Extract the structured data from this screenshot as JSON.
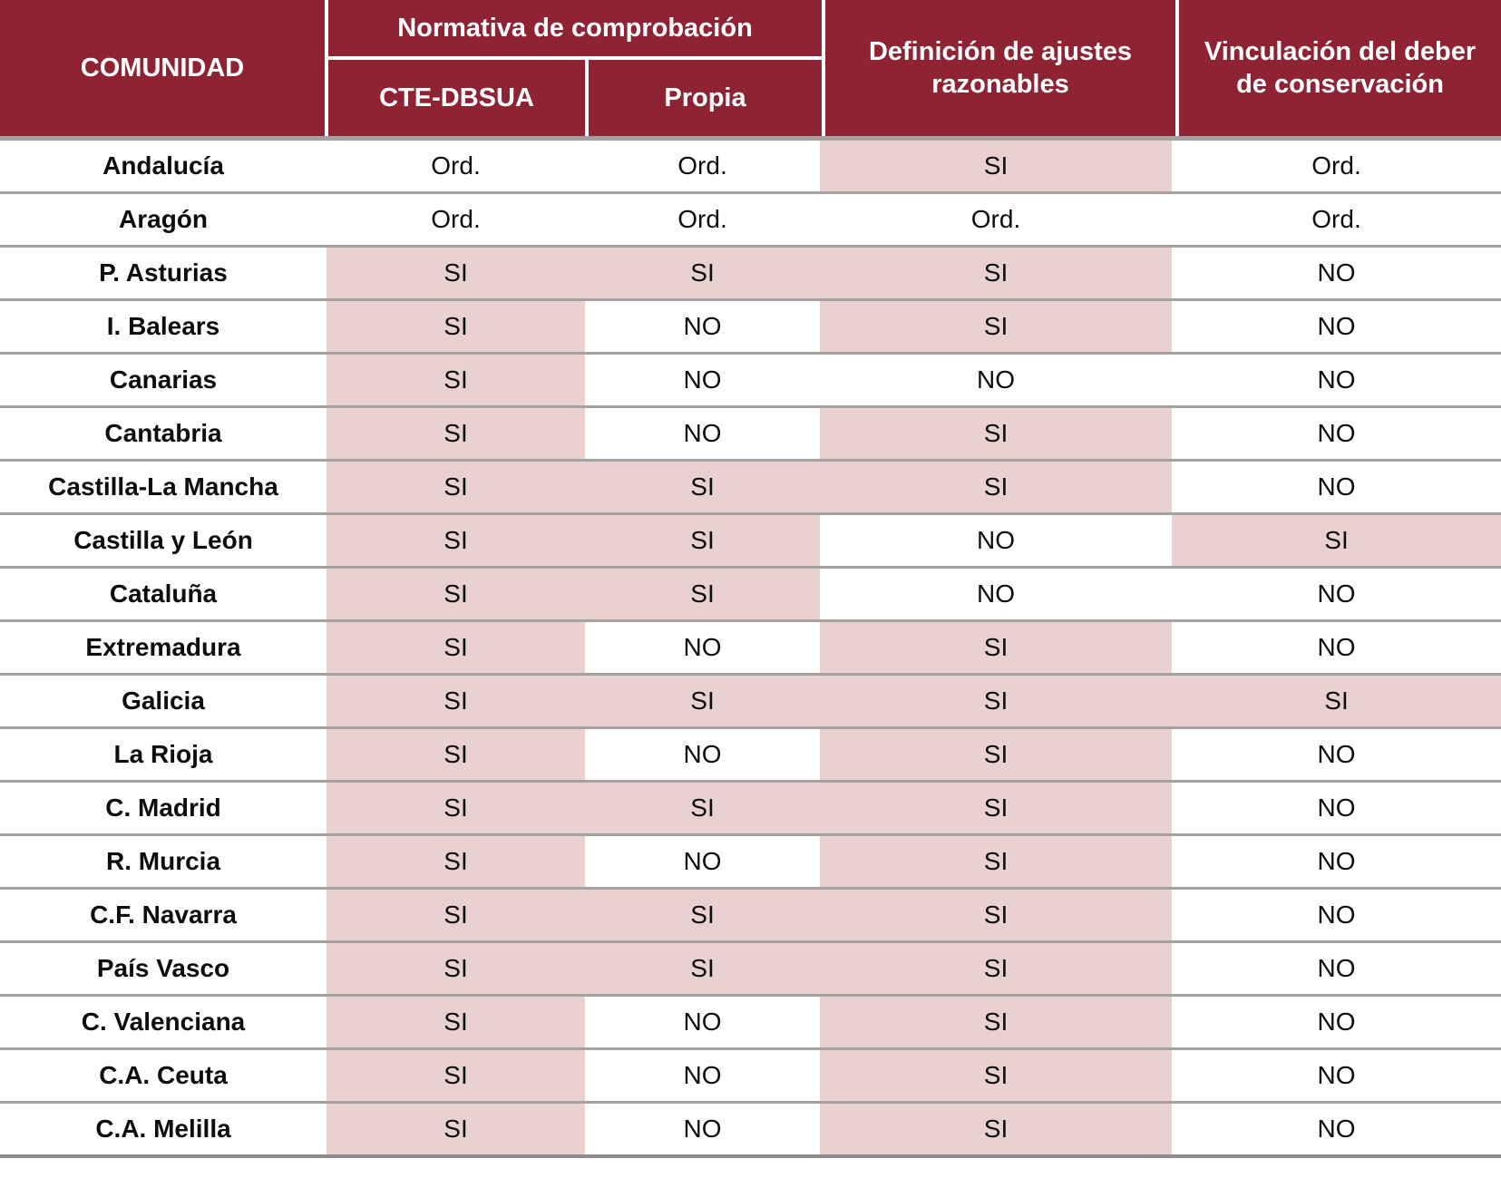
{
  "table": {
    "header": {
      "comunidad": "COMUNIDAD",
      "normativa_group": "Normativa de comprobación",
      "cte": "CTE-DBSUA",
      "propia": "Propia",
      "definicion": "Definición de ajustes razonables",
      "vinculacion": "Vinculación del deber de conservación"
    },
    "rows": [
      {
        "name": "Andalucía",
        "cells": [
          {
            "v": "Ord.",
            "hl": false
          },
          {
            "v": "Ord.",
            "hl": false
          },
          {
            "v": "SI",
            "hl": true
          },
          {
            "v": "Ord.",
            "hl": false
          }
        ]
      },
      {
        "name": "Aragón",
        "cells": [
          {
            "v": "Ord.",
            "hl": false
          },
          {
            "v": "Ord.",
            "hl": false
          },
          {
            "v": "Ord.",
            "hl": false
          },
          {
            "v": "Ord.",
            "hl": false
          }
        ]
      },
      {
        "name": "P. Asturias",
        "cells": [
          {
            "v": "SI",
            "hl": true
          },
          {
            "v": "SI",
            "hl": true
          },
          {
            "v": "SI",
            "hl": true
          },
          {
            "v": "NO",
            "hl": false
          }
        ]
      },
      {
        "name": "I. Balears",
        "cells": [
          {
            "v": "SI",
            "hl": true
          },
          {
            "v": "NO",
            "hl": false
          },
          {
            "v": "SI",
            "hl": true
          },
          {
            "v": "NO",
            "hl": false
          }
        ]
      },
      {
        "name": "Canarias",
        "cells": [
          {
            "v": "SI",
            "hl": true
          },
          {
            "v": "NO",
            "hl": false
          },
          {
            "v": "NO",
            "hl": false
          },
          {
            "v": "NO",
            "hl": false
          }
        ]
      },
      {
        "name": "Cantabria",
        "cells": [
          {
            "v": "SI",
            "hl": true
          },
          {
            "v": "NO",
            "hl": false
          },
          {
            "v": "SI",
            "hl": true
          },
          {
            "v": "NO",
            "hl": false
          }
        ]
      },
      {
        "name": "Castilla-La Mancha",
        "cells": [
          {
            "v": "SI",
            "hl": true
          },
          {
            "v": "SI",
            "hl": true
          },
          {
            "v": "SI",
            "hl": true
          },
          {
            "v": "NO",
            "hl": false
          }
        ]
      },
      {
        "name": "Castilla y León",
        "cells": [
          {
            "v": "SI",
            "hl": true
          },
          {
            "v": "SI",
            "hl": true
          },
          {
            "v": "NO",
            "hl": false
          },
          {
            "v": "SI",
            "hl": true
          }
        ]
      },
      {
        "name": "Cataluña",
        "cells": [
          {
            "v": "SI",
            "hl": true
          },
          {
            "v": "SI",
            "hl": true
          },
          {
            "v": "NO",
            "hl": false
          },
          {
            "v": "NO",
            "hl": false
          }
        ]
      },
      {
        "name": "Extremadura",
        "cells": [
          {
            "v": "SI",
            "hl": true
          },
          {
            "v": "NO",
            "hl": false
          },
          {
            "v": "SI",
            "hl": true
          },
          {
            "v": "NO",
            "hl": false
          }
        ]
      },
      {
        "name": "Galicia",
        "cells": [
          {
            "v": "SI",
            "hl": true
          },
          {
            "v": "SI",
            "hl": true
          },
          {
            "v": "SI",
            "hl": true
          },
          {
            "v": "SI",
            "hl": true
          }
        ]
      },
      {
        "name": "La Rioja",
        "cells": [
          {
            "v": "SI",
            "hl": true
          },
          {
            "v": "NO",
            "hl": false
          },
          {
            "v": "SI",
            "hl": true
          },
          {
            "v": "NO",
            "hl": false
          }
        ]
      },
      {
        "name": "C. Madrid",
        "cells": [
          {
            "v": "SI",
            "hl": true
          },
          {
            "v": "SI",
            "hl": true
          },
          {
            "v": "SI",
            "hl": true
          },
          {
            "v": "NO",
            "hl": false
          }
        ]
      },
      {
        "name": "R. Murcia",
        "cells": [
          {
            "v": "SI",
            "hl": true
          },
          {
            "v": "NO",
            "hl": false
          },
          {
            "v": "SI",
            "hl": true
          },
          {
            "v": "NO",
            "hl": false
          }
        ]
      },
      {
        "name": "C.F. Navarra",
        "cells": [
          {
            "v": "SI",
            "hl": true
          },
          {
            "v": "SI",
            "hl": true
          },
          {
            "v": "SI",
            "hl": true
          },
          {
            "v": "NO",
            "hl": false
          }
        ]
      },
      {
        "name": "País Vasco",
        "cells": [
          {
            "v": "SI",
            "hl": true
          },
          {
            "v": "SI",
            "hl": true
          },
          {
            "v": "SI",
            "hl": true
          },
          {
            "v": "NO",
            "hl": false
          }
        ]
      },
      {
        "name": "C. Valenciana",
        "cells": [
          {
            "v": "SI",
            "hl": true
          },
          {
            "v": "NO",
            "hl": false
          },
          {
            "v": "SI",
            "hl": true
          },
          {
            "v": "NO",
            "hl": false
          }
        ]
      },
      {
        "name": "C.A. Ceuta",
        "cells": [
          {
            "v": "SI",
            "hl": true
          },
          {
            "v": "NO",
            "hl": false
          },
          {
            "v": "SI",
            "hl": true
          },
          {
            "v": "NO",
            "hl": false
          }
        ]
      },
      {
        "name": "C.A. Melilla",
        "cells": [
          {
            "v": "SI",
            "hl": true
          },
          {
            "v": "NO",
            "hl": false
          },
          {
            "v": "SI",
            "hl": true
          },
          {
            "v": "NO",
            "hl": false
          }
        ]
      }
    ]
  },
  "colors": {
    "header_bg": "#8E2333",
    "highlight_bg": "#E9D1D1",
    "divider": "#A5A1A1",
    "text": "#0D0D0D"
  },
  "chart_data": {
    "type": "table",
    "title": "",
    "columns": [
      "COMUNIDAD",
      "Normativa de comprobación - CTE-DBSUA",
      "Normativa de comprobación - Propia",
      "Definición de ajustes razonables",
      "Vinculación del deber de conservación"
    ],
    "rows": [
      [
        "Andalucía",
        "Ord.",
        "Ord.",
        "SI",
        "Ord."
      ],
      [
        "Aragón",
        "Ord.",
        "Ord.",
        "Ord.",
        "Ord."
      ],
      [
        "P. Asturias",
        "SI",
        "SI",
        "SI",
        "NO"
      ],
      [
        "I. Balears",
        "SI",
        "NO",
        "SI",
        "NO"
      ],
      [
        "Canarias",
        "SI",
        "NO",
        "NO",
        "NO"
      ],
      [
        "Cantabria",
        "SI",
        "NO",
        "SI",
        "NO"
      ],
      [
        "Castilla-La Mancha",
        "SI",
        "SI",
        "SI",
        "NO"
      ],
      [
        "Castilla y León",
        "SI",
        "SI",
        "NO",
        "SI"
      ],
      [
        "Cataluña",
        "SI",
        "SI",
        "NO",
        "NO"
      ],
      [
        "Extremadura",
        "SI",
        "NO",
        "SI",
        "NO"
      ],
      [
        "Galicia",
        "SI",
        "SI",
        "SI",
        "SI"
      ],
      [
        "La Rioja",
        "SI",
        "NO",
        "SI",
        "NO"
      ],
      [
        "C. Madrid",
        "SI",
        "SI",
        "SI",
        "NO"
      ],
      [
        "R. Murcia",
        "SI",
        "NO",
        "SI",
        "NO"
      ],
      [
        "C.F. Navarra",
        "SI",
        "SI",
        "SI",
        "NO"
      ],
      [
        "País Vasco",
        "SI",
        "SI",
        "SI",
        "NO"
      ],
      [
        "C. Valenciana",
        "SI",
        "NO",
        "SI",
        "NO"
      ],
      [
        "C.A. Ceuta",
        "SI",
        "NO",
        "SI",
        "NO"
      ],
      [
        "C.A. Melilla",
        "SI",
        "NO",
        "SI",
        "NO"
      ]
    ],
    "highlighted_cells_value": "SI",
    "layout_hints": {
      "header_bg": "#8E2333",
      "si_cell_bg": "#E9D1D1",
      "grid": "horizontal dividers only in body; white dividers in header"
    }
  }
}
